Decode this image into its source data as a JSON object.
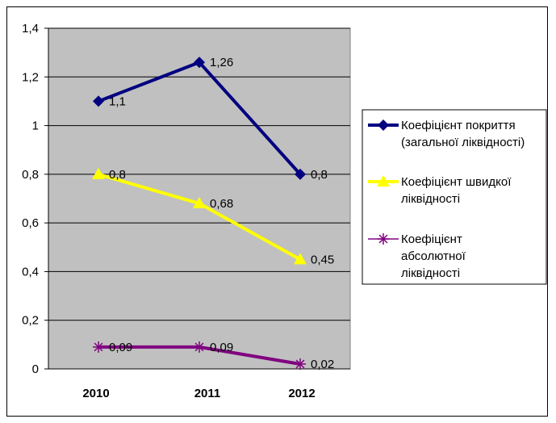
{
  "chart_data": {
    "type": "line",
    "categories": [
      "2010",
      "2011",
      "2012"
    ],
    "ylim": [
      0,
      1.4
    ],
    "yticks": [
      "0",
      "0,2",
      "0,4",
      "0,6",
      "0,8",
      "1",
      "1,2",
      "1,4"
    ],
    "grid": true,
    "legend_position": "right",
    "series": [
      {
        "name": "Коефіцієнт покриття (загальної ліквідності)",
        "legend_lines": [
          "Коефіцієнт покриття",
          "(загальної ліквідності)"
        ],
        "values": [
          1.1,
          1.26,
          0.8
        ],
        "labels": [
          "1,1",
          "1,26",
          "0,8"
        ],
        "color": "#000080",
        "marker": "diamond"
      },
      {
        "name": "Коефіцієнт швидкої ліквідності",
        "legend_lines": [
          "Коефіцієнт швидкої",
          "ліквідності"
        ],
        "values": [
          0.8,
          0.68,
          0.45
        ],
        "labels": [
          "0,8",
          "0,68",
          "0,45"
        ],
        "color": "#ffff00",
        "marker": "triangle"
      },
      {
        "name": "Коефіцієнт абсолютної ліквідності",
        "legend_lines": [
          "Коефіцієнт",
          "абсолютної",
          "ліквідності"
        ],
        "values": [
          0.09,
          0.09,
          0.02
        ],
        "labels": [
          "0,09",
          "0,09",
          "0,02"
        ],
        "color": "#800080",
        "marker": "star"
      }
    ],
    "colors": {
      "plot_background": "#c0c0c0",
      "gridline": "#000000"
    }
  }
}
